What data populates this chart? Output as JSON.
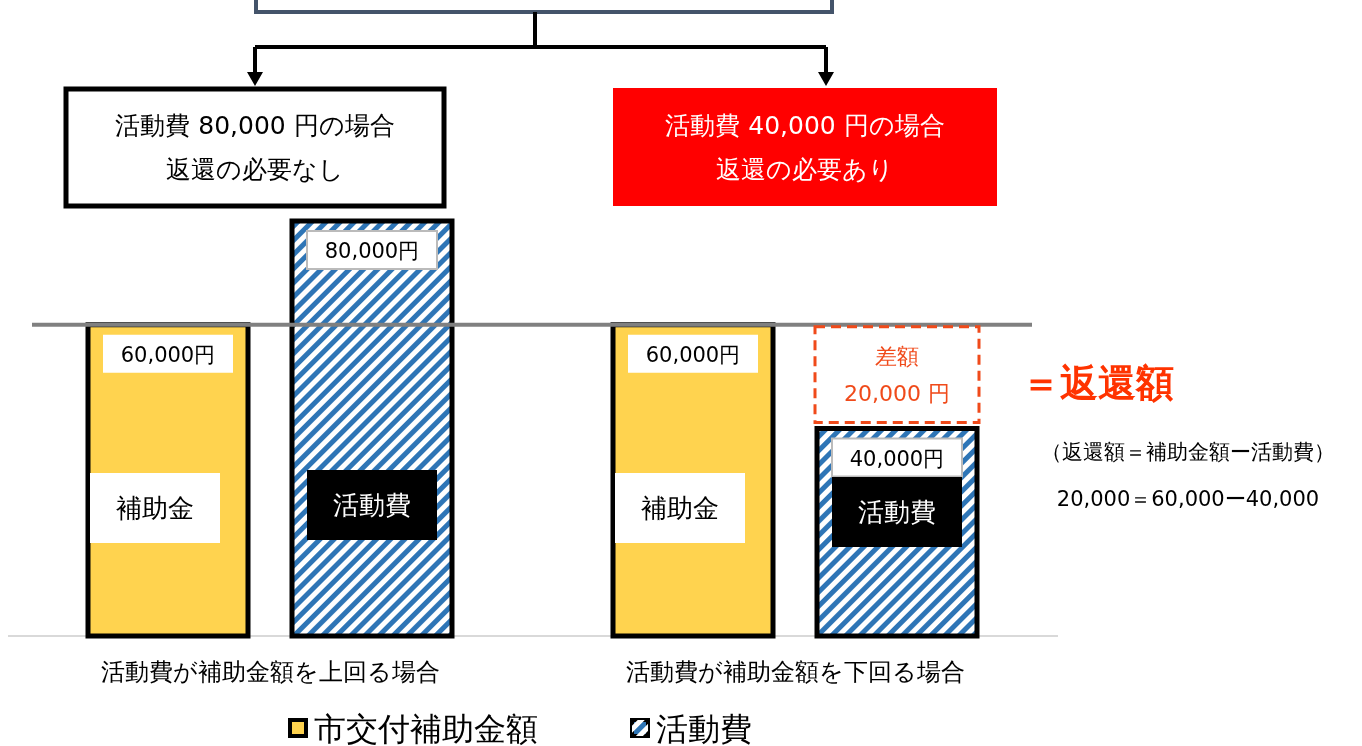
{
  "chart_data": {
    "type": "bar",
    "categories": [
      "活動費が補助金額を上回る場合",
      "活動費が補助金額を下回る場合"
    ],
    "series": [
      {
        "name": "市交付補助金額",
        "color": "#ffd34f",
        "values": [
          60000,
          60000
        ],
        "value_labels": [
          "60,000円",
          "60,000円"
        ]
      },
      {
        "name": "活動費",
        "color": "#2e75b6",
        "values": [
          80000,
          40000
        ],
        "value_labels": [
          "80,000円",
          "40,000円"
        ]
      }
    ],
    "ylim": [
      0,
      80000
    ],
    "ref_lines": [
      {
        "axis": "y",
        "value": 60000,
        "color": "#808080"
      }
    ],
    "legend": "bottom",
    "annotations": [
      "活動費 80,000 円の場合",
      "返還の必要なし",
      "活動費 40,000 円の場合",
      "返還の必要あり",
      "差額",
      "20,000 円",
      "＝返還額",
      "（返還額＝補助金額ー活動費）",
      "20,000＝60,000ー40,000",
      "補助金",
      "活動費",
      "補助金",
      "活動費"
    ]
  }
}
